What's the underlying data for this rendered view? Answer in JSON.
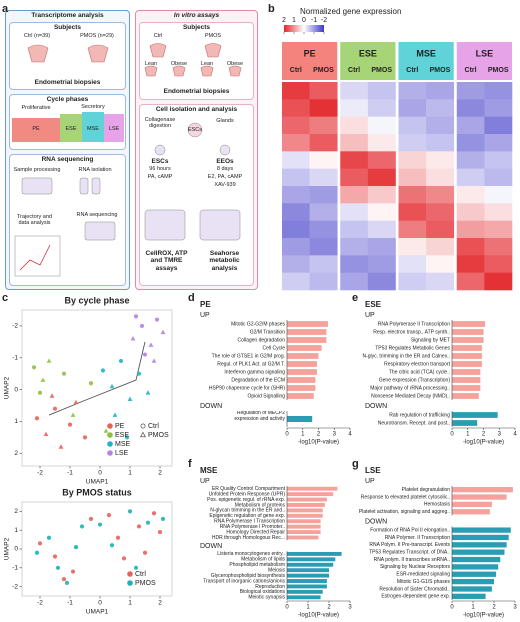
{
  "panel_labels": {
    "a": "a",
    "b": "b",
    "c": "c",
    "d": "d",
    "e": "e",
    "f": "f",
    "g": "g"
  },
  "diagram": {
    "left": {
      "title": "Transcriptome analysis",
      "subjects": "Subjects",
      "ctrl": "Ctrl (n=39)",
      "pmos": "PMOS (n=29)",
      "biopsies": "Endometrial biopsies",
      "cycle": "Cycle phases",
      "proliferative": "Proliferative",
      "secretory": "Secretory",
      "phases": [
        "PE",
        "ESE",
        "MSE",
        "LSE"
      ],
      "rnaseq": "RNA sequencing",
      "sample": "Sample processing",
      "isolation": "RNA isolation",
      "sequencing": "RNA sequencing",
      "trajectory": "Trajectory and data analysis"
    },
    "right": {
      "title": "In vitro assays",
      "subjects": "Subjects",
      "ctrl": "Ctrl",
      "pmos": "PMOS",
      "lean_ctrl": "Lean",
      "obese_ctrl": "Obese",
      "lean_pmos": "Lean",
      "obese_pmos": "Obese",
      "biopsies": "Endometrial biopsies",
      "cell": "Cell isolation and analysis",
      "collagenase": "Collagenase digestion",
      "glands": "Glands",
      "escs": "ESCs",
      "escs2": "ESCs",
      "hours": "96 hours",
      "pa": "PA, cAMP",
      "eeos": "EEOs",
      "days": "8 days",
      "e2": "E2, PA, cAMP",
      "xav": "XAV-939",
      "assays": "CellROX, ATP and TMRE assays",
      "seahorse": "Seahorse metabolic analysis"
    }
  },
  "chart_data": [
    {
      "type": "heatmap",
      "title": "Normalized gene expression",
      "colorbar": {
        "lim": [
          2,
          -2
        ],
        "ticks": [
          2,
          1,
          0,
          -1,
          -2
        ]
      },
      "colors": {
        "high": "#e3262b",
        "mid": "#ffffff",
        "low": "#3f38c8"
      },
      "groups": [
        {
          "name": "PE",
          "color": "#f4837d",
          "conditions": [
            "Ctrl",
            "PMOS"
          ]
        },
        {
          "name": "ESE",
          "color": "#a7d477",
          "conditions": [
            "Ctrl",
            "PMOS"
          ]
        },
        {
          "name": "MSE",
          "color": "#5fd3d8",
          "conditions": [
            "Ctrl",
            "PMOS"
          ]
        },
        {
          "name": "LSE",
          "color": "#e6a3e8",
          "conditions": [
            "Ctrl",
            "PMOS"
          ]
        }
      ],
      "values": [
        [
          1.8,
          1.5,
          -0.4,
          -0.6,
          -0.8,
          -0.9,
          -1.0,
          -1.1
        ],
        [
          1.6,
          1.9,
          -0.2,
          -0.5,
          -0.9,
          -0.7,
          -1.2,
          -1.0
        ],
        [
          1.4,
          1.2,
          0.3,
          -0.1,
          -0.6,
          -0.8,
          -0.9,
          -1.3
        ],
        [
          1.1,
          1.5,
          0.6,
          0.2,
          -0.5,
          -0.6,
          -1.1,
          -0.9
        ],
        [
          -0.3,
          0.1,
          1.7,
          1.4,
          0.4,
          0.2,
          -0.8,
          -0.6
        ],
        [
          -0.6,
          -0.4,
          1.5,
          1.8,
          0.6,
          0.3,
          -0.5,
          -0.7
        ],
        [
          -0.9,
          -1.0,
          0.8,
          0.5,
          1.3,
          1.1,
          0.2,
          -0.1
        ],
        [
          -1.2,
          -0.8,
          -0.3,
          0.1,
          1.6,
          1.4,
          0.5,
          0.3
        ],
        [
          -1.3,
          -1.1,
          -0.6,
          -0.4,
          1.2,
          1.5,
          0.9,
          0.8
        ],
        [
          -1.0,
          -1.2,
          -0.8,
          -0.9,
          0.2,
          0.4,
          1.6,
          1.3
        ],
        [
          -0.8,
          -0.6,
          -1.1,
          -1.0,
          -0.3,
          0.1,
          1.8,
          1.5
        ],
        [
          -0.5,
          -0.7,
          -0.9,
          -1.2,
          -0.5,
          -0.4,
          1.4,
          1.9
        ]
      ]
    },
    {
      "type": "scatter",
      "title": "By cycle phase",
      "xlabel": "UMAP1",
      "ylabel": "UMAP2",
      "xlim": [
        -2.6,
        2.4
      ],
      "ylim": [
        2.4,
        -2.5
      ],
      "xticks": [
        -2,
        -1,
        0,
        1,
        2
      ],
      "yticks": [
        -2,
        -1,
        0,
        1,
        2
      ],
      "legend": "lower right",
      "markers": [
        {
          "name": "Ctrl",
          "shape": "circle"
        },
        {
          "name": "PMOS",
          "shape": "triangle"
        }
      ],
      "trajectory": {
        "x": [
          -1.7,
          -0.4,
          1.2,
          1.5
        ],
        "y": [
          0.8,
          0.3,
          -0.3,
          -1.5
        ]
      },
      "series": [
        {
          "name": "PE",
          "color": "#e8625a",
          "x": [
            -2.1,
            -1.8,
            -1.5,
            -1.3,
            -1.0,
            -0.8,
            -1.6,
            -0.5
          ],
          "y": [
            0.9,
            1.4,
            0.6,
            1.8,
            1.1,
            0.4,
            0.2,
            1.5
          ],
          "status": [
            0,
            1,
            0,
            1,
            0,
            1,
            1,
            0
          ]
        },
        {
          "name": "ESE",
          "color": "#8fbf3f",
          "x": [
            -2.2,
            -1.9,
            -1.7,
            -2.0,
            -1.2,
            -0.9,
            -0.3,
            0.2
          ],
          "y": [
            -0.7,
            -0.3,
            -0.9,
            0.1,
            -0.5,
            0.8,
            -0.2,
            1.3
          ],
          "status": [
            0,
            1,
            1,
            0,
            0,
            1,
            0,
            1
          ]
        },
        {
          "name": "MSE",
          "color": "#1fb5c0",
          "x": [
            0.1,
            0.4,
            0.7,
            1.0,
            1.3,
            0.5,
            0.9,
            1.6
          ],
          "y": [
            -0.6,
            -0.1,
            -0.9,
            0.3,
            -0.5,
            0.8,
            1.5,
            0.1
          ],
          "status": [
            0,
            1,
            0,
            1,
            0,
            1,
            0,
            1
          ]
        },
        {
          "name": "LSE",
          "color": "#b681e0",
          "x": [
            1.1,
            1.4,
            1.7,
            1.9,
            2.1,
            1.5,
            1.8,
            1.2
          ],
          "y": [
            -1.6,
            -2.0,
            -1.4,
            -2.2,
            -1.8,
            -1.1,
            -0.9,
            -2.3
          ],
          "status": [
            1,
            0,
            1,
            0,
            1,
            0,
            1,
            0
          ]
        }
      ]
    },
    {
      "type": "scatter",
      "title": "By PMOS status",
      "xlabel": "UMAP1",
      "ylabel": "UMAP2",
      "xlim": [
        -2.6,
        2.4
      ],
      "ylim": [
        -2.5,
        2.5
      ],
      "xticks": [
        -2,
        -1,
        0,
        1,
        2
      ],
      "yticks": [
        -2,
        -1,
        0,
        1,
        2
      ],
      "legend": "lower right",
      "series": [
        {
          "name": "Ctrl",
          "color": "#e8625a",
          "x": [
            -2.0,
            -1.5,
            -0.9,
            -0.3,
            0.3,
            0.8,
            1.3,
            1.8,
            2.0,
            -1.2,
            0.6,
            1.5
          ],
          "y": [
            0.3,
            -0.4,
            -1.2,
            1.6,
            1.8,
            -0.5,
            1.2,
            1.9,
            0.9,
            -1.6,
            0.6,
            -0.2
          ]
        },
        {
          "name": "PMOS",
          "color": "#19b2b8",
          "x": [
            -2.1,
            -1.7,
            -1.1,
            -0.6,
            0.0,
            0.4,
            1.0,
            1.6,
            2.1,
            -0.8,
            1.2,
            -1.4
          ],
          "y": [
            -0.2,
            0.6,
            -1.8,
            1.2,
            1.3,
            0.2,
            2.0,
            1.4,
            1.6,
            0.1,
            -1.0,
            -1.0
          ]
        }
      ]
    },
    {
      "type": "barh",
      "title": "PE",
      "xlabel": "-log10(P-value)",
      "xlim": [
        0,
        4
      ],
      "xticks": [
        0,
        1,
        2,
        3,
        4
      ],
      "series": [
        {
          "name": "UP",
          "color": "#f4a29b",
          "categories": [
            "Mitotic G2-G2/M phases",
            "G2/M Transition",
            "Collagen degradation",
            "Cell Cycle",
            "The role of GTSE1 in G2/M prog.",
            "Regul. of PLK1 Act. at G2/M T.",
            "Interferon gamma signaling",
            "Degradation of the ECM",
            "HSP90 chaperone cycle for (SHR)",
            "Opioid Signalling"
          ],
          "values": [
            2.6,
            2.5,
            2.5,
            2.2,
            2.0,
            1.9,
            1.9,
            1.8,
            1.8,
            1.7
          ]
        },
        {
          "name": "DOWN",
          "color": "#2b9db3",
          "categories": [
            "Regulation of MECP2\nexpression and activity"
          ],
          "values": [
            1.6
          ]
        }
      ]
    },
    {
      "type": "barh",
      "title": "ESE",
      "xlabel": "-log10(P-value)",
      "xlim": [
        0,
        4
      ],
      "xticks": [
        0,
        1,
        2,
        3,
        4
      ],
      "series": [
        {
          "name": "UP",
          "color": "#f4a29b",
          "categories": [
            "RNA Polymerase II Transcription",
            "Resp. electron transp., ATP synth..",
            "Signaling by MET",
            "TP53 Regulates Metabolic Genes",
            "N-glyc. trimming in the ER and Calnex..",
            "Respiratory electron transport",
            "The citric acid (TCA) cycle..",
            "Gene expression (Transcription)",
            "Major pathway of rRNA processing..",
            "Nonsense Mediated Decay (NMD).."
          ],
          "values": [
            2.1,
            2.0,
            2.0,
            1.9,
            1.9,
            1.9,
            1.8,
            1.8,
            1.8,
            1.7
          ]
        },
        {
          "name": "DOWN",
          "color": "#2b9db3",
          "categories": [
            "Rab regulation of trafficking",
            "Neurotransm. Recept. and post.."
          ],
          "values": [
            2.9,
            1.6
          ]
        }
      ]
    },
    {
      "type": "barh",
      "title": "MSE",
      "xlabel": "-log10(P-value)",
      "xlim": [
        0,
        3
      ],
      "xticks": [
        0,
        1,
        2,
        3
      ],
      "series": [
        {
          "name": "UP",
          "color": "#f4a29b",
          "categories": [
            "ER Quality Control Compartment",
            "Unfolded Protein Response (UPR)",
            "Pos. epigenetic regul. of rRNA exp.",
            "Metabolism of proteins",
            "N-glycan trimming in the ER and..",
            "Epigenetic regulation of gene exp.",
            "RNA Polymerase I Transcription",
            "RNA Polymerase I Promoter..",
            "Homology Directed Repair",
            "HDR through Homologous Rec..."
          ],
          "values": [
            2.4,
            2.2,
            1.9,
            1.8,
            1.7,
            1.7,
            1.6,
            1.6,
            1.6,
            1.5
          ]
        },
        {
          "name": "DOWN",
          "color": "#2b9db3",
          "categories": [
            "Listeria monocytogenes entry..",
            "Metabolism of lipids",
            "Phospholipid metabolism",
            "Meiosis",
            "Glycerophospholipid biosynthesis",
            "Transport of inorganic cations/anions",
            "Reproduction",
            "Biological oxidations",
            "Meiotic synapsis"
          ],
          "values": [
            2.6,
            2.3,
            2.2,
            2.0,
            2.0,
            1.9,
            1.9,
            1.7,
            1.6
          ]
        }
      ]
    },
    {
      "type": "barh",
      "title": "LSE",
      "xlabel": "-log10(P-value)",
      "xlim": [
        0,
        3
      ],
      "xticks": [
        0,
        1,
        2,
        3
      ],
      "series": [
        {
          "name": "UP",
          "color": "#f4a29b",
          "categories": [
            "Platelet degranulation",
            "Response to elevated platelet cytosolic..",
            "Hemostasis",
            "Platelet activation, signaling and aggreg.."
          ],
          "values": [
            2.9,
            2.6,
            1.9,
            1.8
          ]
        },
        {
          "name": "DOWN",
          "color": "#2b9db3",
          "categories": [
            "Formation of RNA Pol II elongation..",
            "RNA Polymer. II Transcription",
            "RNA Polym. II Pre-transcript. Events",
            "TP53 Regulates Transcript. of DNA..",
            "RNA polym. II transcribes snRNA..",
            "Signaling by Nuclear Receptors",
            "ESR-mediated signaling",
            "Mitotic G1-G1/S phases",
            "Resolution of Sister Chromatid..",
            "Estrogen-dependent gene exp."
          ],
          "values": [
            2.8,
            2.7,
            2.6,
            2.5,
            2.3,
            2.2,
            2.1,
            2.0,
            1.9,
            1.6
          ]
        }
      ]
    }
  ]
}
